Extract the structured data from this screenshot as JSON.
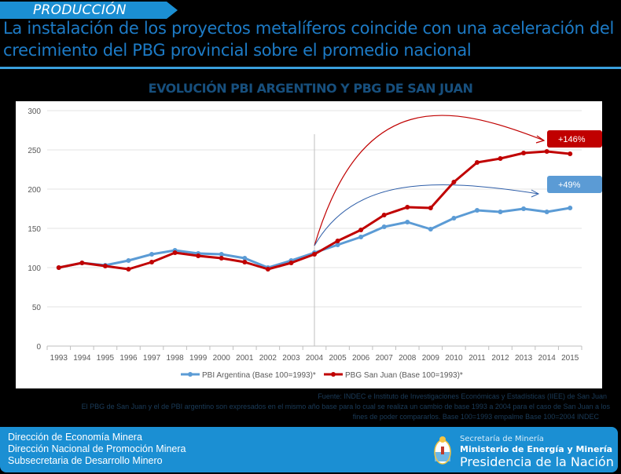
{
  "section": {
    "label": "PRODUCCIÓN"
  },
  "headline": {
    "line1": "La instalación de los proyectos metalíferos coincide con una aceleración del",
    "line2": "crecimiento del PBG provincial sobre el promedio nacional"
  },
  "chart_data": {
    "type": "line",
    "title": "EVOLUCIÓN PBI ARGENTINO Y PBG DE SAN JUAN",
    "xlabel": "",
    "ylabel": "",
    "ylim": [
      0,
      300
    ],
    "yticks": [
      "0",
      "50",
      "100",
      "150",
      "200",
      "250",
      "300"
    ],
    "grid": true,
    "legend_position": "bottom",
    "categories": [
      "1993",
      "1994",
      "1995",
      "1996",
      "1997",
      "1998",
      "1999",
      "2000",
      "2001",
      "2002",
      "2003",
      "2004",
      "2005",
      "2006",
      "2007",
      "2008",
      "2009",
      "2010",
      "2011",
      "2012",
      "2013",
      "2014",
      "2015"
    ],
    "series": [
      {
        "name": "PBI Argentina (Base 100=1993)*",
        "color": "#5b9bd5",
        "values": [
          100,
          106,
          103,
          109,
          117,
          122,
          118,
          117,
          112,
          100,
          109,
          119,
          129,
          139,
          152,
          158,
          149,
          163,
          173,
          171,
          175,
          171,
          176
        ]
      },
      {
        "name": "PBG San Juan (Base 100=1993)*",
        "color": "#c00000",
        "values": [
          100,
          106,
          102,
          98,
          107,
          119,
          115,
          112,
          107,
          98,
          106,
          117,
          134,
          148,
          167,
          177,
          176,
          209,
          234,
          239,
          246,
          248,
          245
        ]
      }
    ],
    "annotations": [
      {
        "label": "+146%",
        "series": "PBG San Juan (Base 100=1993)*",
        "color": "#c00000"
      },
      {
        "label": "+49%",
        "series": "PBI Argentina (Base 100=1993)*",
        "color": "#5b9bd5"
      }
    ],
    "vertical_marker": "2004"
  },
  "footnotes": {
    "source": "Fuente: INDEC e Instituto de Investigaciones Económicas y Estadísticas (IIEE) de San Juan",
    "note1": "El PBG de San Juan y el de PBI argentino son expresados en el mismo año base para lo cual se realiza un cambio de base 1993 a        2004 para el caso de San Juan a los",
    "note2": "fines de poder compararlos. Base 100=1993 empalme Base 100=2004 INDEC"
  },
  "footer": {
    "left": [
      "Dirección de Economía Minera",
      "Dirección Nacional de Promoción Minera",
      "Subsecretaria de Desarrollo Minero"
    ],
    "right": {
      "line1": "Secretaría de Minería",
      "line2": "Ministerio de Energía y Minería",
      "line3": "Presidencia de la Nación"
    }
  }
}
